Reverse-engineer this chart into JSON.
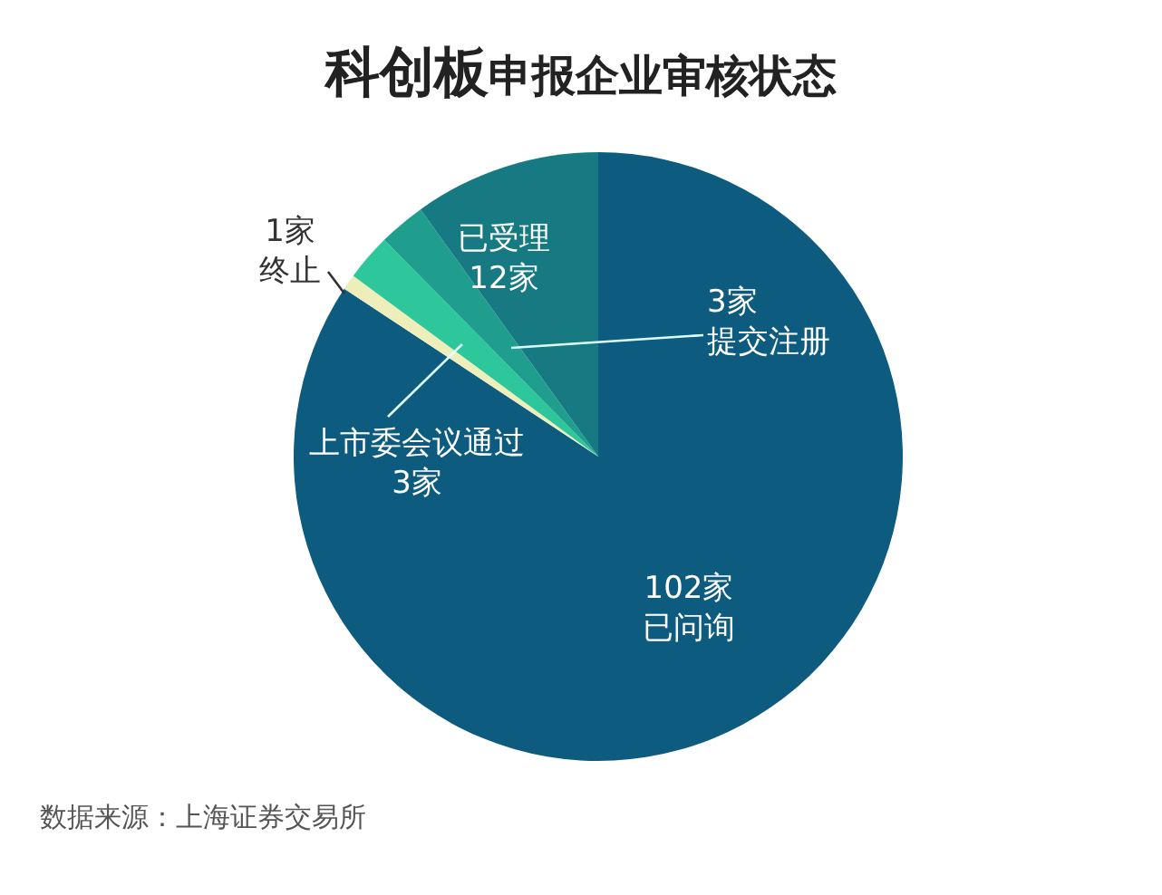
{
  "chart_data": {
    "type": "pie",
    "title": "科创板申报企业审核状态",
    "categories": [
      "已问询",
      "终止",
      "上市委会议通过",
      "提交注册",
      "已受理"
    ],
    "values": [
      102,
      1,
      3,
      3,
      12
    ],
    "value_labels": [
      "102家",
      "1家",
      "3家",
      "3家",
      "12家"
    ],
    "colors": [
      "#0d5b7e",
      "#eeeebb",
      "#2ec79c",
      "#1f9e8e",
      "#177a83"
    ],
    "annotations": [
      "数据来源：上海证券交易所"
    ]
  }
}
